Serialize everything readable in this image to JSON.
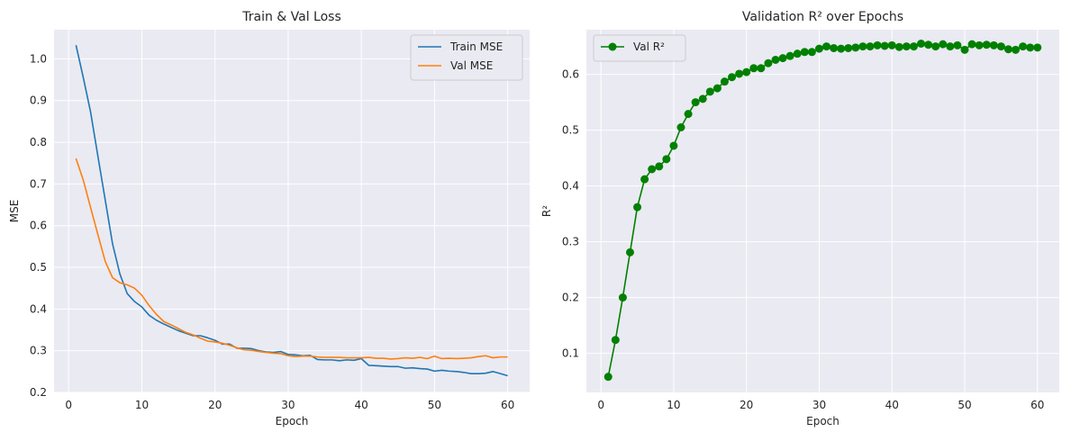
{
  "chart_data": [
    {
      "type": "line",
      "title": "Train & Val Loss",
      "xlabel": "Epoch",
      "ylabel": "MSE",
      "xlim": [
        -2,
        63
      ],
      "ylim": [
        0.2,
        1.07
      ],
      "xticks": [
        0,
        10,
        20,
        30,
        40,
        50,
        60
      ],
      "yticks": [
        0.2,
        0.3,
        0.4,
        0.5,
        0.6,
        0.7,
        0.8,
        0.9,
        1.0
      ],
      "ytick_labels": [
        "0.2",
        "0.3",
        "0.4",
        "0.5",
        "0.6",
        "0.7",
        "0.8",
        "0.9",
        "1.0"
      ],
      "grid": true,
      "legend_position": "top-right",
      "series": [
        {
          "name": "Train MSE",
          "color": "#1f77b4",
          "x": [
            1,
            2,
            3,
            4,
            5,
            6,
            7,
            8,
            9,
            10,
            11,
            12,
            13,
            14,
            15,
            16,
            17,
            18,
            19,
            20,
            21,
            22,
            23,
            24,
            25,
            26,
            27,
            28,
            29,
            30,
            31,
            32,
            33,
            34,
            35,
            36,
            37,
            38,
            39,
            40,
            41,
            42,
            43,
            44,
            45,
            46,
            47,
            48,
            49,
            50,
            51,
            52,
            53,
            54,
            55,
            56,
            57,
            58,
            59,
            60
          ],
          "values": [
            1.033,
            0.955,
            0.872,
            0.766,
            0.661,
            0.556,
            0.484,
            0.437,
            0.418,
            0.405,
            0.385,
            0.373,
            0.364,
            0.356,
            0.348,
            0.342,
            0.336,
            0.336,
            0.331,
            0.325,
            0.316,
            0.316,
            0.306,
            0.306,
            0.305,
            0.3,
            0.297,
            0.296,
            0.298,
            0.291,
            0.29,
            0.288,
            0.289,
            0.279,
            0.278,
            0.278,
            0.276,
            0.278,
            0.277,
            0.281,
            0.265,
            0.264,
            0.263,
            0.262,
            0.262,
            0.258,
            0.259,
            0.257,
            0.256,
            0.251,
            0.253,
            0.251,
            0.25,
            0.248,
            0.245,
            0.245,
            0.246,
            0.25,
            0.245,
            0.24
          ]
        },
        {
          "name": "Val MSE",
          "color": "#ff7f0e",
          "x": [
            1,
            2,
            3,
            4,
            5,
            6,
            7,
            8,
            9,
            10,
            11,
            12,
            13,
            14,
            15,
            16,
            17,
            18,
            19,
            20,
            21,
            22,
            23,
            24,
            25,
            26,
            27,
            28,
            29,
            30,
            31,
            32,
            33,
            34,
            35,
            36,
            37,
            38,
            39,
            40,
            41,
            42,
            43,
            44,
            45,
            46,
            47,
            48,
            49,
            50,
            51,
            52,
            53,
            54,
            55,
            56,
            57,
            58,
            59,
            60
          ],
          "values": [
            0.761,
            0.709,
            0.643,
            0.578,
            0.514,
            0.475,
            0.463,
            0.458,
            0.45,
            0.433,
            0.408,
            0.387,
            0.37,
            0.362,
            0.353,
            0.344,
            0.338,
            0.33,
            0.323,
            0.321,
            0.318,
            0.313,
            0.307,
            0.302,
            0.301,
            0.298,
            0.296,
            0.294,
            0.293,
            0.288,
            0.286,
            0.287,
            0.287,
            0.285,
            0.284,
            0.284,
            0.284,
            0.283,
            0.283,
            0.283,
            0.284,
            0.282,
            0.282,
            0.28,
            0.281,
            0.283,
            0.282,
            0.284,
            0.281,
            0.287,
            0.281,
            0.282,
            0.281,
            0.282,
            0.283,
            0.286,
            0.288,
            0.283,
            0.285,
            0.285
          ]
        }
      ]
    },
    {
      "type": "line",
      "title": "Validation R² over Epochs",
      "xlabel": "Epoch",
      "ylabel": "R²",
      "xlim": [
        -2,
        63
      ],
      "ylim": [
        0.03,
        0.68
      ],
      "xticks": [
        0,
        10,
        20,
        30,
        40,
        50,
        60
      ],
      "yticks": [
        0.1,
        0.2,
        0.3,
        0.4,
        0.5,
        0.6
      ],
      "ytick_labels": [
        "0.1",
        "0.2",
        "0.3",
        "0.4",
        "0.5",
        "0.6"
      ],
      "grid": true,
      "legend_position": "top-left",
      "series": [
        {
          "name": "Val R²",
          "color": "#008000",
          "marker": "circle",
          "x": [
            1,
            2,
            3,
            4,
            5,
            6,
            7,
            8,
            9,
            10,
            11,
            12,
            13,
            14,
            15,
            16,
            17,
            18,
            19,
            20,
            21,
            22,
            23,
            24,
            25,
            26,
            27,
            28,
            29,
            30,
            31,
            32,
            33,
            34,
            35,
            36,
            37,
            38,
            39,
            40,
            41,
            42,
            43,
            44,
            45,
            46,
            47,
            48,
            49,
            50,
            51,
            52,
            53,
            54,
            55,
            56,
            57,
            58,
            59,
            60
          ],
          "values": [
            0.058,
            0.124,
            0.2,
            0.281,
            0.362,
            0.412,
            0.43,
            0.435,
            0.448,
            0.472,
            0.505,
            0.529,
            0.55,
            0.556,
            0.569,
            0.575,
            0.587,
            0.595,
            0.601,
            0.604,
            0.611,
            0.611,
            0.62,
            0.626,
            0.629,
            0.633,
            0.637,
            0.64,
            0.64,
            0.646,
            0.65,
            0.647,
            0.646,
            0.647,
            0.648,
            0.65,
            0.65,
            0.652,
            0.651,
            0.652,
            0.649,
            0.65,
            0.65,
            0.655,
            0.653,
            0.65,
            0.654,
            0.65,
            0.652,
            0.644,
            0.654,
            0.652,
            0.653,
            0.652,
            0.65,
            0.645,
            0.644,
            0.65,
            0.648,
            0.648
          ]
        }
      ]
    }
  ]
}
